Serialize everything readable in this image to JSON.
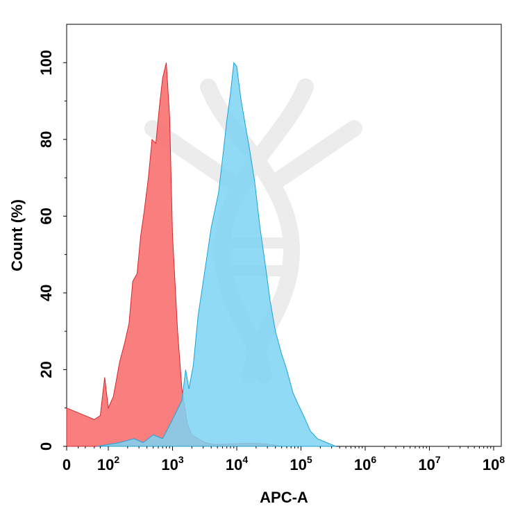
{
  "chart_data": {
    "type": "area",
    "xlabel": "APC-A",
    "ylabel": "Count (%)",
    "x_scale": "biexponential",
    "xlim": [
      0,
      100000000
    ],
    "ylim": [
      0,
      110
    ],
    "x_ticks": [
      {
        "base": "0",
        "exp": ""
      },
      {
        "base": "10",
        "exp": "2"
      },
      {
        "base": "10",
        "exp": "3"
      },
      {
        "base": "10",
        "exp": "4"
      },
      {
        "base": "10",
        "exp": "5"
      },
      {
        "base": "10",
        "exp": "6"
      },
      {
        "base": "10",
        "exp": "7"
      },
      {
        "base": "10",
        "exp": "8"
      }
    ],
    "y_ticks": [
      "0",
      "20",
      "40",
      "60",
      "80",
      "100"
    ],
    "y_tick_values": [
      0,
      20,
      40,
      60,
      80,
      100
    ],
    "series": [
      {
        "color": "#f87171",
        "stroke": "#d4262e",
        "points": [
          [
            0,
            10
          ],
          [
            20,
            8
          ],
          [
            40,
            7
          ],
          [
            60,
            8
          ],
          [
            80,
            18
          ],
          [
            100,
            10
          ],
          [
            120,
            13
          ],
          [
            150,
            22
          ],
          [
            180,
            27
          ],
          [
            210,
            32
          ],
          [
            240,
            43
          ],
          [
            280,
            45
          ],
          [
            320,
            55
          ],
          [
            360,
            61
          ],
          [
            420,
            70
          ],
          [
            480,
            80
          ],
          [
            550,
            79
          ],
          [
            620,
            88
          ],
          [
            700,
            96
          ],
          [
            800,
            100
          ],
          [
            900,
            86
          ],
          [
            1000,
            55
          ],
          [
            1200,
            30
          ],
          [
            1400,
            15
          ],
          [
            1700,
            6
          ],
          [
            2000,
            3
          ],
          [
            2500,
            2
          ],
          [
            3200,
            1
          ],
          [
            4500,
            0.5
          ],
          [
            7000,
            0.6
          ],
          [
            12000,
            0.8
          ],
          [
            20000,
            0.8
          ],
          [
            30000,
            0.6
          ],
          [
            40000,
            0.3
          ],
          [
            50000,
            0
          ]
        ]
      },
      {
        "color": "#7dd3f3",
        "stroke": "#1aa3d6",
        "points": [
          [
            50,
            0
          ],
          [
            150,
            1
          ],
          [
            250,
            2
          ],
          [
            350,
            1
          ],
          [
            500,
            3
          ],
          [
            700,
            2
          ],
          [
            1000,
            7
          ],
          [
            1400,
            12
          ],
          [
            1600,
            20
          ],
          [
            1800,
            15
          ],
          [
            2100,
            21
          ],
          [
            2500,
            34
          ],
          [
            3200,
            46
          ],
          [
            4000,
            57
          ],
          [
            5200,
            66
          ],
          [
            6000,
            75
          ],
          [
            7000,
            85
          ],
          [
            8000,
            92
          ],
          [
            9000,
            100
          ],
          [
            10000,
            99
          ],
          [
            11500,
            91
          ],
          [
            13500,
            84
          ],
          [
            16000,
            77
          ],
          [
            19000,
            69
          ],
          [
            23000,
            57
          ],
          [
            28000,
            47
          ],
          [
            33000,
            38
          ],
          [
            40000,
            30
          ],
          [
            50000,
            24
          ],
          [
            60000,
            20
          ],
          [
            75000,
            14
          ],
          [
            90000,
            11
          ],
          [
            110000,
            8
          ],
          [
            140000,
            4
          ],
          [
            180000,
            2
          ],
          [
            250000,
            1
          ],
          [
            350000,
            0
          ]
        ]
      }
    ]
  }
}
